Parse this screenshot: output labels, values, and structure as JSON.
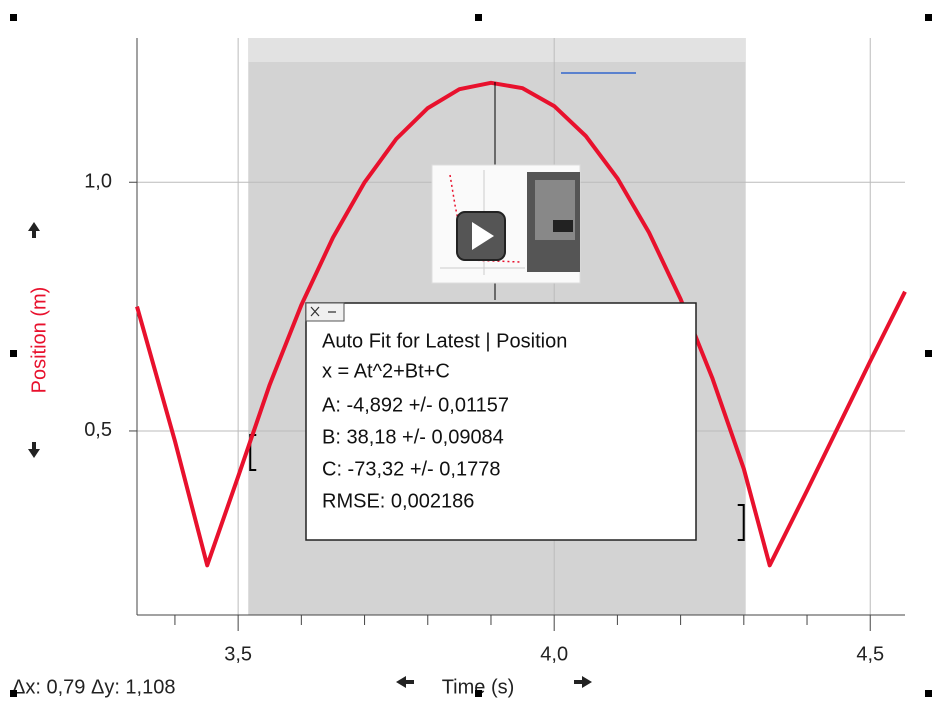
{
  "chart_data": {
    "type": "line",
    "x": [
      3.34,
      3.4,
      3.451,
      3.5,
      3.55,
      3.6,
      3.65,
      3.7,
      3.75,
      3.8,
      3.85,
      3.9,
      3.95,
      4.0,
      4.05,
      4.1,
      4.15,
      4.2,
      4.25,
      4.3,
      4.341,
      4.4,
      4.45,
      4.5,
      4.555
    ],
    "values": [
      0.75,
      0.48,
      0.23,
      0.408,
      0.593,
      0.753,
      0.889,
      1.0,
      1.087,
      1.149,
      1.187,
      1.2,
      1.189,
      1.153,
      1.093,
      1.008,
      0.899,
      0.765,
      0.607,
      0.424,
      0.23,
      0.38,
      0.51,
      0.64,
      0.78
    ],
    "color": "#e8112d",
    "xlim": [
      3.34,
      4.555
    ],
    "ylim": [
      0.13,
      1.29
    ],
    "xticks": [
      {
        "value": 3.5,
        "label": "3,5"
      },
      {
        "value": 4.0,
        "label": "4,0"
      },
      {
        "value": 4.5,
        "label": "4,5"
      }
    ],
    "minor_xticks": [
      3.4,
      3.6,
      3.7,
      3.8,
      3.9,
      4.1,
      4.2,
      4.3,
      4.4
    ],
    "yticks": [
      {
        "value": 0.5,
        "label": "0,5"
      },
      {
        "value": 1.0,
        "label": "1,0"
      }
    ],
    "grid": true,
    "xlabel": "Time (s)",
    "ylabel": "Position (m)",
    "fit_range": [
      3.516,
      4.303
    ],
    "fit_box": {
      "title": "Auto Fit for  Latest | Position",
      "equation": "x = At^2+Bt+C",
      "lines": [
        "A: -4,892 +/- 0,01157",
        "B: 38,18 +/- 0,09084",
        "C: -73,32 +/- 0,1778",
        "RMSE: 0,002186"
      ]
    },
    "delta_readout": "Δx: 0,79 Δy: 1,108"
  }
}
